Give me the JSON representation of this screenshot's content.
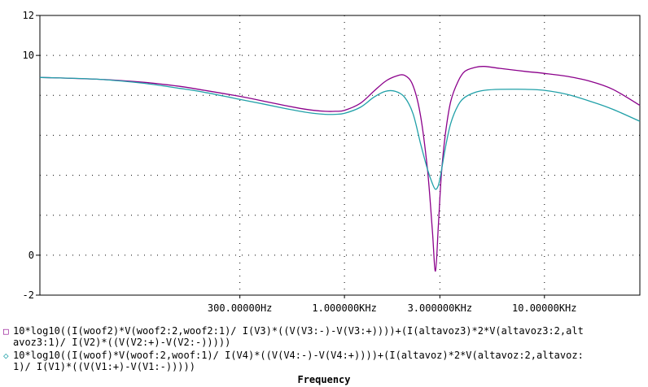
{
  "chart_data": {
    "type": "line",
    "x_scale": "log",
    "x_range_hz": [
      30,
      30000
    ],
    "ylim": [
      -2,
      12
    ],
    "y_ticks": [
      {
        "value": 12,
        "label": "12"
      },
      {
        "value": 10,
        "label": "10"
      },
      {
        "value": 0,
        "label": "0"
      },
      {
        "value": -2,
        "label": "-2"
      }
    ],
    "x_ticks": [
      {
        "value": 300,
        "label": "300.00000Hz"
      },
      {
        "value": 1000,
        "label": "1.000000KHz"
      },
      {
        "value": 3000,
        "label": "3.000000KHz"
      },
      {
        "value": 10000,
        "label": "10.00000KHz"
      }
    ],
    "xlabel": "Frequency",
    "grid": true,
    "series": [
      {
        "name_lines": [
          "10*log10((I(woof2)*V(woof2:2,woof2:1)/ I(V3)*((V(V3:-)-V(V3:+))))+(I(altavoz3)*2*V(altavoz3:2,alt",
          "avoz3:1)/ I(V2)*((V(V2:+)-V(V2:-)))))"
        ],
        "marker": "□",
        "color": "#8b008b",
        "x": [
          30,
          60,
          100,
          150,
          200,
          300,
          400,
          500,
          600,
          700,
          800,
          900,
          1000,
          1200,
          1400,
          1600,
          1800,
          2000,
          2200,
          2400,
          2600,
          2750,
          2850,
          2950,
          3050,
          3200,
          3400,
          3700,
          4000,
          4500,
          5000,
          6000,
          8000,
          10000,
          13000,
          17000,
          22000,
          30000
        ],
        "values": [
          8.9,
          8.8,
          8.65,
          8.45,
          8.25,
          7.95,
          7.7,
          7.5,
          7.35,
          7.25,
          7.2,
          7.2,
          7.25,
          7.6,
          8.2,
          8.7,
          8.95,
          9.0,
          8.5,
          7.0,
          4.3,
          1.3,
          -0.8,
          1.5,
          4.0,
          6.1,
          7.7,
          8.7,
          9.2,
          9.4,
          9.45,
          9.35,
          9.2,
          9.1,
          8.95,
          8.7,
          8.3,
          7.5
        ]
      },
      {
        "name_lines": [
          "10*log10((I(woof)*V(woof:2,woof:1)/ I(V4)*((V(V4:-)-V(V4:+))))+(I(altavoz)*2*V(altavoz:2,altavoz:",
          "1)/ I(V1)*((V(V1:+)-V(V1:-)))))"
        ],
        "marker": "◇",
        "color": "#20a0a8",
        "x": [
          30,
          60,
          100,
          150,
          200,
          300,
          400,
          500,
          600,
          700,
          800,
          900,
          1000,
          1200,
          1400,
          1600,
          1800,
          2000,
          2200,
          2400,
          2600,
          2750,
          2850,
          2950,
          3050,
          3200,
          3400,
          3700,
          4000,
          4500,
          5000,
          6000,
          8000,
          10000,
          13000,
          17000,
          22000,
          30000
        ],
        "values": [
          8.9,
          8.8,
          8.6,
          8.35,
          8.15,
          7.8,
          7.55,
          7.35,
          7.2,
          7.1,
          7.05,
          7.05,
          7.1,
          7.4,
          7.9,
          8.2,
          8.2,
          7.9,
          7.1,
          5.6,
          4.3,
          3.6,
          3.3,
          3.5,
          4.2,
          5.4,
          6.6,
          7.5,
          7.9,
          8.15,
          8.25,
          8.3,
          8.3,
          8.25,
          8.05,
          7.7,
          7.3,
          6.7
        ]
      }
    ]
  }
}
